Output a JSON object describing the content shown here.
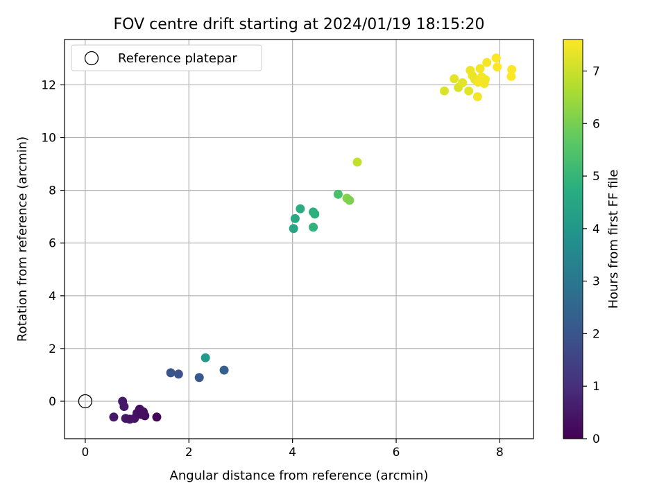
{
  "chart_data": {
    "type": "scatter",
    "title": "FOV centre drift starting at 2024/01/19 18:15:20",
    "xlabel": "Angular distance from reference (arcmin)",
    "ylabel": "Rotation from reference (arcmin)",
    "xlim": [
      -0.4,
      8.65
    ],
    "ylim": [
      -1.42,
      13.72
    ],
    "xticks": [
      0,
      2,
      4,
      6,
      8
    ],
    "yticks": [
      0,
      2,
      4,
      6,
      8,
      10,
      12
    ],
    "grid": true,
    "legend": {
      "position": "top-left",
      "entries": [
        "Reference platepar"
      ]
    },
    "reference_point": {
      "x": 0,
      "y": 0
    },
    "colorbar": {
      "label": "Hours from first FF file",
      "min": 0,
      "max": 7.6,
      "ticks": [
        0,
        1,
        2,
        3,
        4,
        5,
        6,
        7
      ],
      "colormap": "viridis"
    },
    "points": [
      {
        "x": 0.55,
        "y": -0.6,
        "h": 0.5
      },
      {
        "x": 0.72,
        "y": 0.0,
        "h": 0.5
      },
      {
        "x": 0.75,
        "y": -0.2,
        "h": 0.5
      },
      {
        "x": 0.78,
        "y": -0.65,
        "h": 0.45
      },
      {
        "x": 0.86,
        "y": -0.68,
        "h": 0.4
      },
      {
        "x": 0.95,
        "y": -0.65,
        "h": 0.4
      },
      {
        "x": 1.0,
        "y": -0.45,
        "h": 0.35
      },
      {
        "x": 1.05,
        "y": -0.3,
        "h": 0.3
      },
      {
        "x": 1.08,
        "y": -0.5,
        "h": 0.3
      },
      {
        "x": 1.12,
        "y": -0.4,
        "h": 0.3
      },
      {
        "x": 1.15,
        "y": -0.55,
        "h": 0.25
      },
      {
        "x": 1.38,
        "y": -0.6,
        "h": 0.1
      },
      {
        "x": 1.65,
        "y": 1.08,
        "h": 2.0
      },
      {
        "x": 1.8,
        "y": 1.03,
        "h": 1.9
      },
      {
        "x": 2.2,
        "y": 0.9,
        "h": 2.1
      },
      {
        "x": 2.32,
        "y": 1.65,
        "h": 4.1
      },
      {
        "x": 2.68,
        "y": 1.18,
        "h": 2.3
      },
      {
        "x": 4.02,
        "y": 6.55,
        "h": 4.5
      },
      {
        "x": 4.05,
        "y": 6.93,
        "h": 4.6
      },
      {
        "x": 4.15,
        "y": 7.3,
        "h": 4.7
      },
      {
        "x": 4.4,
        "y": 7.18,
        "h": 4.8
      },
      {
        "x": 4.43,
        "y": 7.1,
        "h": 4.8
      },
      {
        "x": 4.4,
        "y": 6.6,
        "h": 4.9
      },
      {
        "x": 4.88,
        "y": 7.85,
        "h": 5.4
      },
      {
        "x": 5.05,
        "y": 7.7,
        "h": 6.2
      },
      {
        "x": 5.1,
        "y": 7.62,
        "h": 6.1
      },
      {
        "x": 5.25,
        "y": 9.07,
        "h": 6.9
      },
      {
        "x": 6.93,
        "y": 11.77,
        "h": 7.2
      },
      {
        "x": 7.12,
        "y": 12.23,
        "h": 7.3
      },
      {
        "x": 7.2,
        "y": 11.9,
        "h": 7.2
      },
      {
        "x": 7.28,
        "y": 12.08,
        "h": 7.3
      },
      {
        "x": 7.4,
        "y": 11.77,
        "h": 7.3
      },
      {
        "x": 7.43,
        "y": 12.55,
        "h": 7.4
      },
      {
        "x": 7.47,
        "y": 12.35,
        "h": 7.4
      },
      {
        "x": 7.52,
        "y": 12.2,
        "h": 7.4
      },
      {
        "x": 7.57,
        "y": 11.55,
        "h": 7.5
      },
      {
        "x": 7.58,
        "y": 12.1,
        "h": 7.5
      },
      {
        "x": 7.62,
        "y": 12.62,
        "h": 7.5
      },
      {
        "x": 7.65,
        "y": 12.3,
        "h": 7.5
      },
      {
        "x": 7.7,
        "y": 12.05,
        "h": 7.5
      },
      {
        "x": 7.72,
        "y": 12.2,
        "h": 7.5
      },
      {
        "x": 7.75,
        "y": 12.85,
        "h": 7.5
      },
      {
        "x": 7.93,
        "y": 13.02,
        "h": 7.6
      },
      {
        "x": 7.95,
        "y": 12.68,
        "h": 7.6
      },
      {
        "x": 8.23,
        "y": 12.58,
        "h": 7.6
      },
      {
        "x": 8.22,
        "y": 12.32,
        "h": 7.6
      }
    ]
  }
}
